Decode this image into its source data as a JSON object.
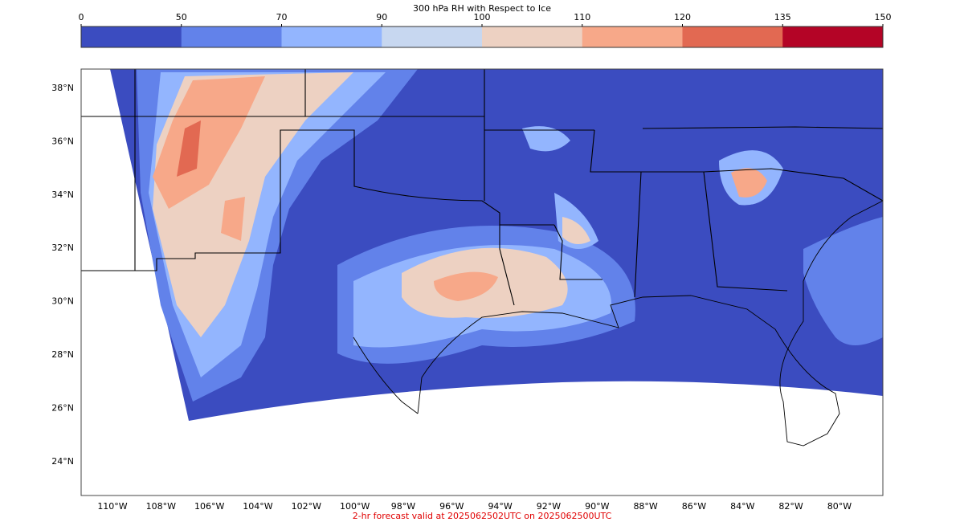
{
  "colorbar": {
    "title": "300 hPa RH with Respect to Ice",
    "ticks": [
      0,
      50,
      70,
      90,
      100,
      110,
      120,
      135,
      150
    ],
    "colors": [
      "#3b4cc0",
      "#6282ea",
      "#93b5fe",
      "#c7d7f0",
      "#edd1c2",
      "#f7a889",
      "#e26952",
      "#b40426"
    ]
  },
  "map": {
    "lat_labels": [
      "38°N",
      "36°N",
      "34°N",
      "32°N",
      "30°N",
      "28°N",
      "26°N",
      "24°N"
    ],
    "lon_labels": [
      "110°W",
      "108°W",
      "106°W",
      "104°W",
      "102°W",
      "100°W",
      "98°W",
      "96°W",
      "94°W",
      "92°W",
      "90°W",
      "88°W",
      "86°W",
      "84°W",
      "82°W",
      "80°W"
    ]
  },
  "caption": "2-hr forecast valid at 2025062502UTC on 2025062500UTC"
}
